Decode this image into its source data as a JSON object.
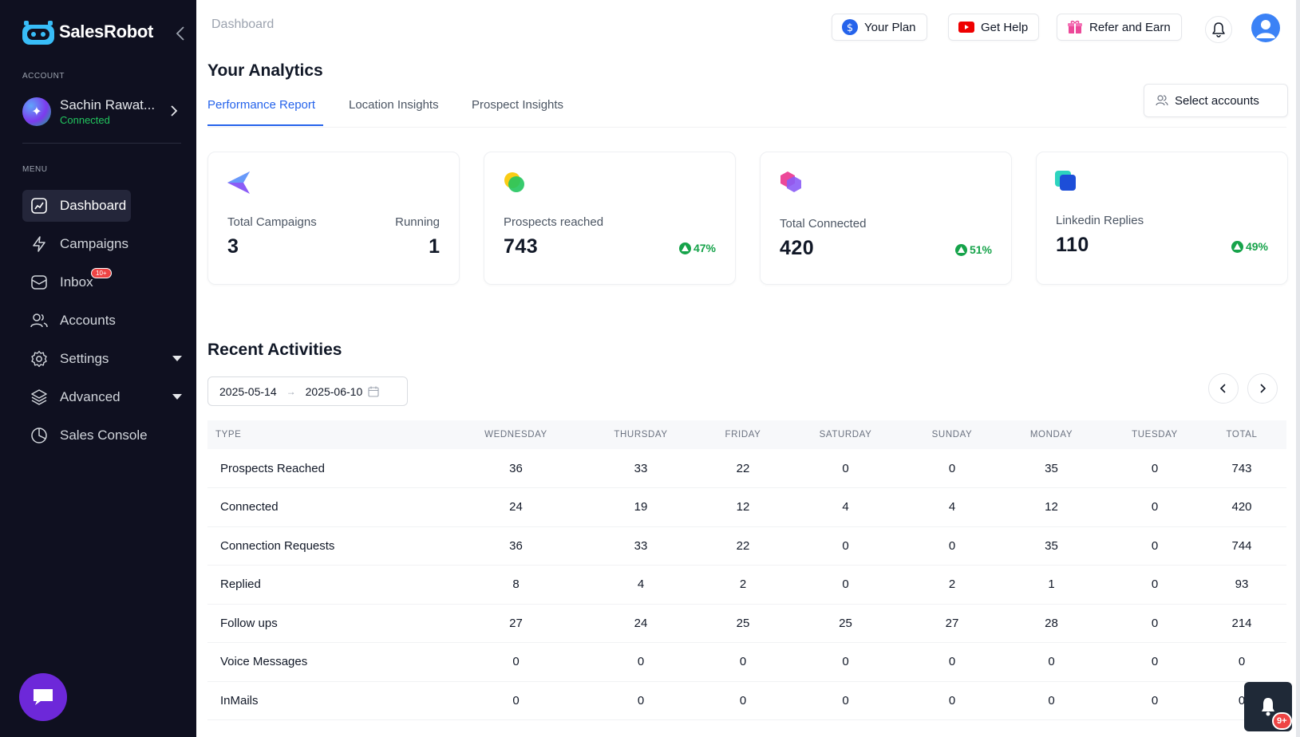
{
  "brand": {
    "name": "SalesRobot"
  },
  "sidebar": {
    "account_label": "ACCOUNT",
    "account": {
      "name": "Sachin Rawat...",
      "status": "Connected"
    },
    "menu_label": "MENU",
    "items": [
      {
        "label": "Dashboard",
        "icon": "dashboard-icon"
      },
      {
        "label": "Campaigns",
        "icon": "bolt-icon"
      },
      {
        "label": "Inbox",
        "icon": "inbox-icon",
        "badge": "10+"
      },
      {
        "label": "Accounts",
        "icon": "users-icon"
      },
      {
        "label": "Settings",
        "icon": "gear-icon"
      },
      {
        "label": "Advanced",
        "icon": "layers-icon"
      },
      {
        "label": "Sales Console",
        "icon": "pie-chart-icon"
      }
    ]
  },
  "header": {
    "breadcrumb": "Dashboard",
    "your_plan": "Your Plan",
    "get_help": "Get Help",
    "refer_earn": "Refer and Earn"
  },
  "main": {
    "title": "Your Analytics",
    "tabs": [
      "Performance Report",
      "Location Insights",
      "Prospect Insights"
    ],
    "select_accounts": "Select accounts",
    "cards": {
      "campaigns": {
        "label": "Total Campaigns",
        "value": "3",
        "right_label": "Running",
        "right_value": "1"
      },
      "prospects": {
        "label": "Prospects reached",
        "value": "743",
        "change": "47%"
      },
      "connected": {
        "label": "Total Connected",
        "value": "420",
        "change": "51%"
      },
      "replies": {
        "label": "Linkedin Replies",
        "value": "110",
        "change": "49%"
      }
    },
    "recent": {
      "title": "Recent Activities",
      "date_start": "2025-05-14",
      "date_end": "2025-06-10",
      "date_separator": "→",
      "columns": [
        "TYPE",
        "WEDNESDAY",
        "THURSDAY",
        "FRIDAY",
        "SATURDAY",
        "SUNDAY",
        "MONDAY",
        "TUESDAY",
        "TOTAL"
      ],
      "rows": [
        [
          "Prospects Reached",
          "36",
          "33",
          "22",
          "0",
          "0",
          "35",
          "0",
          "743"
        ],
        [
          "Connected",
          "24",
          "19",
          "12",
          "4",
          "4",
          "12",
          "0",
          "420"
        ],
        [
          "Connection Requests",
          "36",
          "33",
          "22",
          "0",
          "0",
          "35",
          "0",
          "744"
        ],
        [
          "Replied",
          "8",
          "4",
          "2",
          "0",
          "2",
          "1",
          "0",
          "93"
        ],
        [
          "Follow ups",
          "27",
          "24",
          "25",
          "25",
          "27",
          "28",
          "0",
          "214"
        ],
        [
          "Voice Messages",
          "0",
          "0",
          "0",
          "0",
          "0",
          "0",
          "0",
          "0"
        ],
        [
          "InMails",
          "0",
          "0",
          "0",
          "0",
          "0",
          "0",
          "0",
          "0"
        ]
      ]
    }
  },
  "notifications": {
    "badge": "9+"
  },
  "colors": {
    "accent": "#2563eb",
    "sidebar_bg": "#0f1020",
    "positive": "#16a34a",
    "badge": "#ef4444"
  }
}
